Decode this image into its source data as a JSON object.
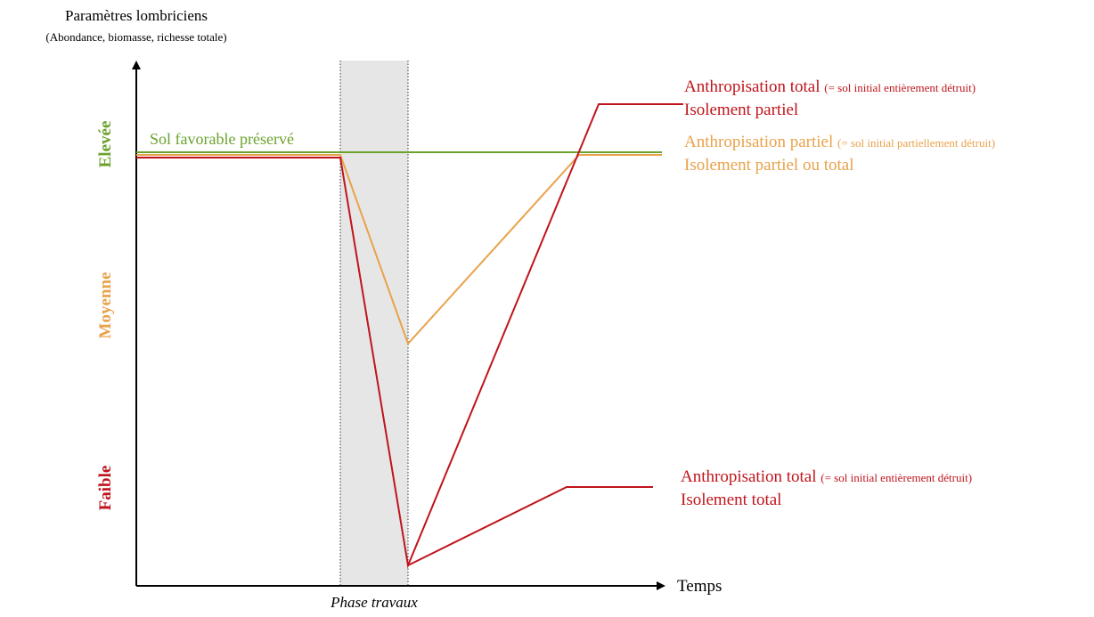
{
  "y_axis": {
    "title": "Paramètres lombriciens",
    "subtitle": "(Abondance, biomasse, richesse totale)",
    "levels": [
      "Elevée",
      "Moyenne",
      "Faible"
    ]
  },
  "x_axis": {
    "label": "Temps",
    "phase": "Phase travaux"
  },
  "curves": [
    {
      "label": "Sol favorable préservé"
    },
    {
      "label": "Anthropisation total",
      "note": "(= sol initial  entièrement  détruit)",
      "label2": "Isolement partiel"
    },
    {
      "label": "Anthropisation partiel",
      "note": "(= sol initial  partiellement  détruit)",
      "label2": "Isolement partiel ou total"
    },
    {
      "label": "Anthropisation total",
      "note": "(= sol initial  entièrement  détruit)",
      "label2": "Isolement total"
    }
  ]
}
